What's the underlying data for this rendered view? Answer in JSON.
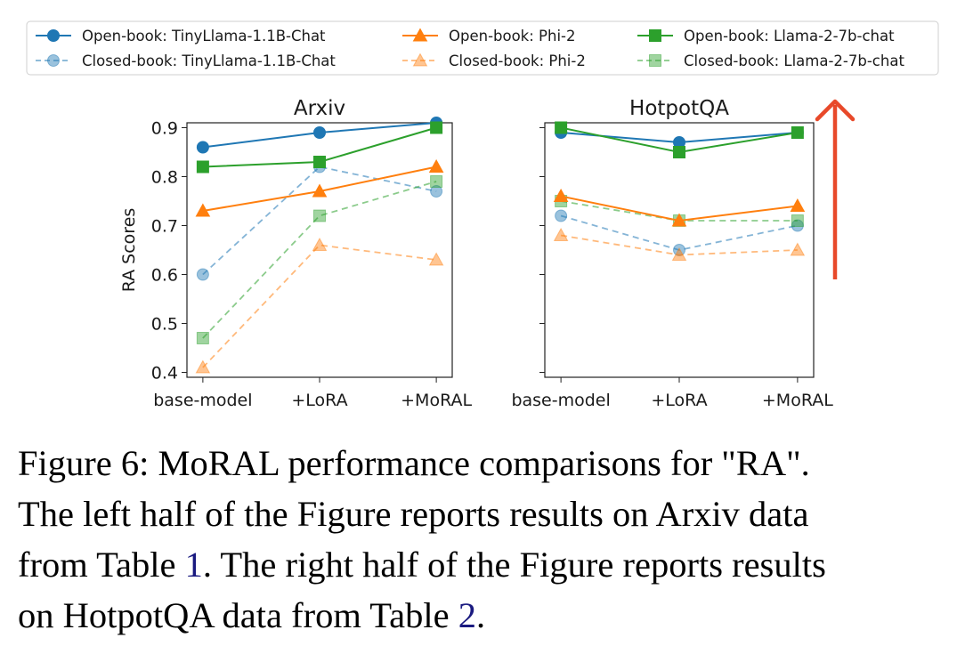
{
  "legend": [
    {
      "label": "Open-book: TinyLlama-1.1B-Chat",
      "color": "#1f77b4",
      "marker": "circle",
      "dashed": false
    },
    {
      "label": "Open-book: Phi-2",
      "color": "#ff7f0e",
      "marker": "triangle",
      "dashed": false
    },
    {
      "label": "Open-book: Llama-2-7b-chat",
      "color": "#2ca02c",
      "marker": "square",
      "dashed": false
    },
    {
      "label": "Closed-book: TinyLlama-1.1B-Chat",
      "color": "#1f77b4",
      "marker": "circle",
      "dashed": true
    },
    {
      "label": "Closed-book: Phi-2",
      "color": "#ff7f0e",
      "marker": "triangle",
      "dashed": true
    },
    {
      "label": "Closed-book: Llama-2-7b-chat",
      "color": "#2ca02c",
      "marker": "square",
      "dashed": true
    }
  ],
  "annotation": {
    "arrow": "up-arrow",
    "color": "#e8492a"
  },
  "chart_data": [
    {
      "type": "line",
      "title": "Arxiv",
      "xlabel": "",
      "ylabel": "RA Scores",
      "categories": [
        "base-model",
        "+LoRA",
        "+MoRAL"
      ],
      "ylim": [
        0.39,
        0.91
      ],
      "yticks": [
        "0.4",
        "0.5",
        "0.6",
        "0.7",
        "0.8",
        "0.9"
      ],
      "series": [
        {
          "name": "Open-book: TinyLlama-1.1B-Chat",
          "values": [
            0.86,
            0.89,
            0.91
          ],
          "color": "#1f77b4",
          "marker": "circle",
          "dashed": false
        },
        {
          "name": "Closed-book: TinyLlama-1.1B-Chat",
          "values": [
            0.6,
            0.82,
            0.77
          ],
          "color": "#1f77b4",
          "marker": "circle",
          "dashed": true
        },
        {
          "name": "Open-book: Phi-2",
          "values": [
            0.73,
            0.77,
            0.82
          ],
          "color": "#ff7f0e",
          "marker": "triangle",
          "dashed": false
        },
        {
          "name": "Closed-book: Phi-2",
          "values": [
            0.41,
            0.66,
            0.63
          ],
          "color": "#ff7f0e",
          "marker": "triangle",
          "dashed": true
        },
        {
          "name": "Open-book: Llama-2-7b-chat",
          "values": [
            0.82,
            0.83,
            0.9
          ],
          "color": "#2ca02c",
          "marker": "square",
          "dashed": false
        },
        {
          "name": "Closed-book: Llama-2-7b-chat",
          "values": [
            0.47,
            0.72,
            0.79
          ],
          "color": "#2ca02c",
          "marker": "square",
          "dashed": true
        }
      ]
    },
    {
      "type": "line",
      "title": "HotpotQA",
      "xlabel": "",
      "ylabel": "",
      "categories": [
        "base-model",
        "+LoRA",
        "+MoRAL"
      ],
      "ylim": [
        0.39,
        0.91
      ],
      "yticks": [
        "",
        "",
        "",
        "",
        "",
        ""
      ],
      "series": [
        {
          "name": "Open-book: TinyLlama-1.1B-Chat",
          "values": [
            0.89,
            0.87,
            0.89
          ],
          "color": "#1f77b4",
          "marker": "circle",
          "dashed": false
        },
        {
          "name": "Closed-book: TinyLlama-1.1B-Chat",
          "values": [
            0.72,
            0.65,
            0.7
          ],
          "color": "#1f77b4",
          "marker": "circle",
          "dashed": true
        },
        {
          "name": "Open-book: Phi-2",
          "values": [
            0.76,
            0.71,
            0.74
          ],
          "color": "#ff7f0e",
          "marker": "triangle",
          "dashed": false
        },
        {
          "name": "Closed-book: Phi-2",
          "values": [
            0.68,
            0.64,
            0.65
          ],
          "color": "#ff7f0e",
          "marker": "triangle",
          "dashed": true
        },
        {
          "name": "Open-book: Llama-2-7b-chat",
          "values": [
            0.9,
            0.85,
            0.89
          ],
          "color": "#2ca02c",
          "marker": "square",
          "dashed": false
        },
        {
          "name": "Closed-book: Llama-2-7b-chat",
          "values": [
            0.75,
            0.71,
            0.71
          ],
          "color": "#2ca02c",
          "marker": "square",
          "dashed": true
        }
      ]
    }
  ],
  "caption": {
    "line1": "Figure 6: MoRAL performance comparisons for \"RA\".",
    "line2": "The left half of the Figure reports results on Arxiv data",
    "line3_pre": "from Table ",
    "line3_ref": "1",
    "line3_post": ". The right half of the Figure reports results",
    "line4_pre": "on HotpotQA data from Table ",
    "line4_ref": "2",
    "line4_post": "."
  }
}
